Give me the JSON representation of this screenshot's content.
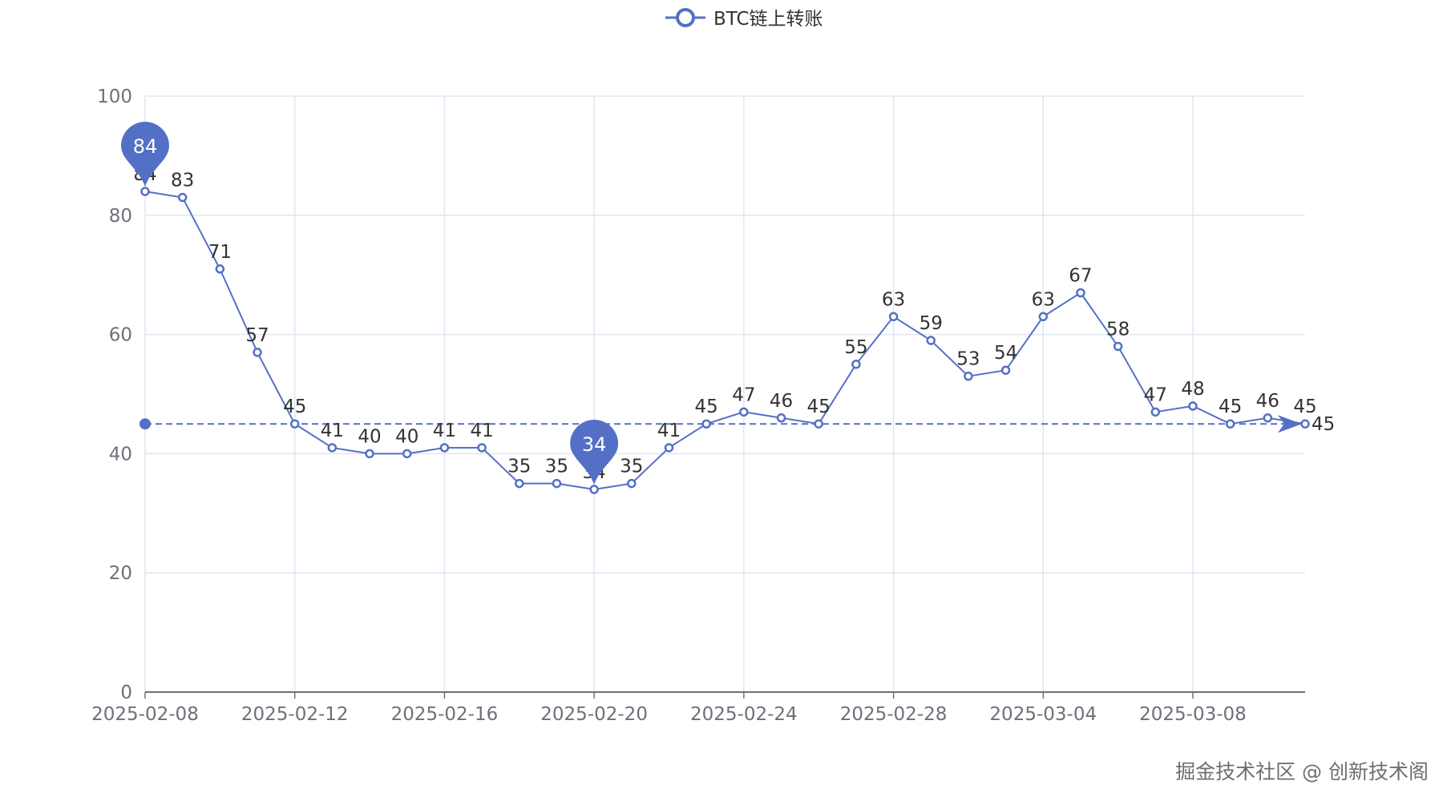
{
  "chart_data": {
    "type": "line",
    "title": "",
    "xlabel": "",
    "ylabel": "",
    "legend": {
      "entries": [
        "BTC链上转账"
      ],
      "placement": "top-center"
    },
    "x": [
      "2025-02-08",
      "2025-02-09",
      "2025-02-10",
      "2025-02-11",
      "2025-02-12",
      "2025-02-13",
      "2025-02-14",
      "2025-02-15",
      "2025-02-16",
      "2025-02-17",
      "2025-02-18",
      "2025-02-19",
      "2025-02-20",
      "2025-02-21",
      "2025-02-22",
      "2025-02-23",
      "2025-02-24",
      "2025-02-25",
      "2025-02-26",
      "2025-02-27",
      "2025-02-28",
      "2025-03-01",
      "2025-03-02",
      "2025-03-03",
      "2025-03-04",
      "2025-03-05",
      "2025-03-06",
      "2025-03-07",
      "2025-03-08",
      "2025-03-09",
      "2025-03-10",
      "2025-03-11"
    ],
    "x_tick_labels": [
      "2025-02-08",
      "2025-02-12",
      "2025-02-16",
      "2025-02-20",
      "2025-02-24",
      "2025-02-28",
      "2025-03-04",
      "2025-03-08"
    ],
    "series": [
      {
        "name": "BTC链上转账",
        "color": "#5470c6",
        "values": [
          84,
          83,
          71,
          57,
          45,
          41,
          40,
          40,
          41,
          41,
          35,
          35,
          34,
          35,
          41,
          45,
          47,
          46,
          45,
          55,
          63,
          59,
          53,
          54,
          63,
          67,
          58,
          47,
          48,
          45,
          46,
          45
        ]
      }
    ],
    "mark_points": [
      {
        "type": "max",
        "label": "84",
        "value": 84,
        "x": "2025-02-08"
      },
      {
        "type": "min",
        "label": "34",
        "value": 34,
        "x": "2025-02-20"
      }
    ],
    "mark_line": {
      "value": 45,
      "label": "45",
      "style": "dashed"
    },
    "ylim": [
      0,
      100
    ],
    "y_ticks": [
      0,
      20,
      40,
      60,
      80,
      100
    ],
    "grid": true
  },
  "watermark": "掘金技术社区 @ 创新技术阁"
}
